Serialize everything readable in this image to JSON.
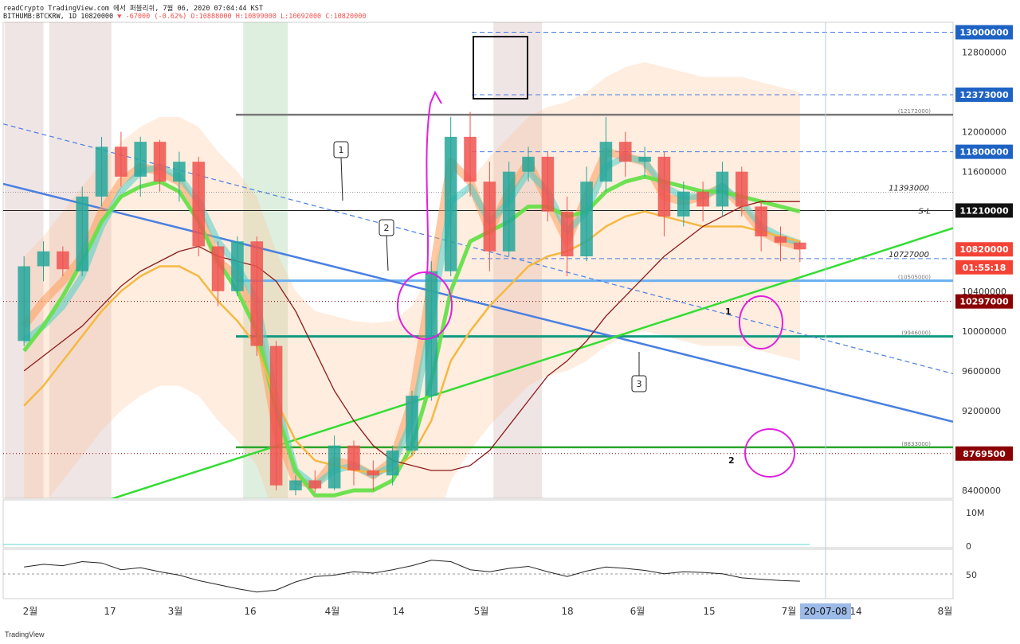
{
  "header": {
    "line1": "readCrypto TradingView.com 에서 퍼블리쉬, 7월 06, 2020 07:04:44 KST",
    "symbol": "BITHUMB:BTCKRW, 1D 10820000",
    "change": "▼ -67000 (-0.62%)",
    "ohlc": "O:10888000 H:10899000 L:10692000 C:10820000"
  },
  "footer": {
    "logo": "TradingView"
  },
  "colors": {
    "up_candle": "#26a69a",
    "down_candle": "#ef5350",
    "price_axis_blue": "#1e63c4",
    "price_axis_red": "#f44336",
    "support_dark_red": "#8b0000",
    "annotation_magenta": "#e020e0",
    "green_line": "#33dd33",
    "blue_line": "#4a7fe0",
    "teal_line": "#119980"
  },
  "chart_data": {
    "type": "line",
    "title": "BITHUMB:BTCKRW, 1D",
    "price_axis": {
      "ticks": [
        "12800000",
        "12400000",
        "12000000",
        "11600000",
        "11200000",
        "10800000",
        "10400000",
        "10000000",
        "9600000",
        "9200000",
        "8800000",
        "8400000"
      ],
      "ylim": [
        8320000,
        13100000
      ]
    },
    "time_axis": {
      "ticks": [
        "2월",
        "17",
        "3월",
        "16",
        "4월",
        "14",
        "5월",
        "18",
        "6월",
        "15",
        "7월",
        "14",
        "8월"
      ],
      "cursor_label": "20-07-08"
    },
    "price_labels": [
      {
        "text": "13000000",
        "value": 13000000,
        "style": "blue"
      },
      {
        "text": "12373000",
        "value": 12373000,
        "style": "blue"
      },
      {
        "text": "11800000",
        "value": 11800000,
        "style": "blue"
      },
      {
        "text": "11210000",
        "value": 11210000,
        "style": "black"
      },
      {
        "text": "10820000",
        "value": 10820000,
        "style": "red"
      },
      {
        "text": "01:55:18",
        "value": 10640000,
        "style": "red"
      },
      {
        "text": "10297000",
        "value": 10297000,
        "style": "darkred"
      },
      {
        "text": "8769500",
        "value": 8769500,
        "style": "darkred"
      }
    ],
    "line_tags": [
      {
        "text": "(12172000)",
        "value": 12172000
      },
      {
        "text": "11393000",
        "value": 11393000
      },
      {
        "text": "S-L",
        "value": 11210000
      },
      {
        "text": "10727000",
        "value": 10727000
      },
      {
        "text": "(10505000)",
        "value": 10505000
      },
      {
        "text": "(9946000)",
        "value": 9946000
      },
      {
        "text": "(8833000)",
        "value": 8833000
      }
    ],
    "horizontal_levels": [
      {
        "value": 13000000,
        "style": "dashed-blue"
      },
      {
        "value": 12373000,
        "style": "dashed-blue"
      },
      {
        "value": 12172000,
        "style": "solid-gray"
      },
      {
        "value": 11800000,
        "style": "dashed-blue"
      },
      {
        "value": 11393000,
        "style": "dotted-gray"
      },
      {
        "value": 11210000,
        "style": "solid-black"
      },
      {
        "value": 10727000,
        "style": "dashed-blue"
      },
      {
        "value": 10505000,
        "style": "solid-lightblue"
      },
      {
        "value": 10297000,
        "style": "dotted-red"
      },
      {
        "value": 9946000,
        "style": "solid-teal"
      },
      {
        "value": 8833000,
        "style": "solid-green"
      },
      {
        "value": 8769500,
        "style": "dotted-red"
      }
    ],
    "candles": [
      {
        "o": 9900000,
        "h": 10750000,
        "l": 9850000,
        "c": 10650000
      },
      {
        "o": 10650000,
        "h": 10900000,
        "l": 10500000,
        "c": 10800000
      },
      {
        "o": 10800000,
        "h": 10850000,
        "l": 10550000,
        "c": 10620000
      },
      {
        "o": 10600000,
        "h": 11450000,
        "l": 10550000,
        "c": 11350000
      },
      {
        "o": 11350000,
        "h": 11950000,
        "l": 11250000,
        "c": 11850000
      },
      {
        "o": 11850000,
        "h": 12000000,
        "l": 11450000,
        "c": 11550000
      },
      {
        "o": 11550000,
        "h": 11950000,
        "l": 11350000,
        "c": 11900000
      },
      {
        "o": 11900000,
        "h": 11920000,
        "l": 11400000,
        "c": 11500000
      },
      {
        "o": 11500000,
        "h": 11800000,
        "l": 11300000,
        "c": 11700000
      },
      {
        "o": 11700000,
        "h": 11750000,
        "l": 10750000,
        "c": 10850000
      },
      {
        "o": 10850000,
        "h": 10900000,
        "l": 10250000,
        "c": 10400000
      },
      {
        "o": 10400000,
        "h": 10950000,
        "l": 10350000,
        "c": 10900000
      },
      {
        "o": 10900000,
        "h": 10950000,
        "l": 9750000,
        "c": 9850000
      },
      {
        "o": 9850000,
        "h": 9900000,
        "l": 8400000,
        "c": 8450000
      },
      {
        "o": 8400000,
        "h": 8550000,
        "l": 8350000,
        "c": 8500000
      },
      {
        "o": 8500000,
        "h": 8600000,
        "l": 8380000,
        "c": 8420000
      },
      {
        "o": 8420000,
        "h": 8950000,
        "l": 8400000,
        "c": 8850000
      },
      {
        "o": 8850000,
        "h": 8900000,
        "l": 8450000,
        "c": 8600000
      },
      {
        "o": 8600000,
        "h": 8700000,
        "l": 8400000,
        "c": 8550000
      },
      {
        "o": 8550000,
        "h": 8850000,
        "l": 8450000,
        "c": 8800000
      },
      {
        "o": 8800000,
        "h": 9400000,
        "l": 8750000,
        "c": 9350000
      },
      {
        "o": 9350000,
        "h": 10700000,
        "l": 9300000,
        "c": 10600000
      },
      {
        "o": 10600000,
        "h": 12150000,
        "l": 10550000,
        "c": 11950000
      },
      {
        "o": 11950000,
        "h": 12200000,
        "l": 11350000,
        "c": 11500000
      },
      {
        "o": 11500000,
        "h": 11700000,
        "l": 10600000,
        "c": 10800000
      },
      {
        "o": 10800000,
        "h": 11700000,
        "l": 10750000,
        "c": 11600000
      },
      {
        "o": 11600000,
        "h": 11850000,
        "l": 11500000,
        "c": 11750000
      },
      {
        "o": 11750000,
        "h": 11800000,
        "l": 11100000,
        "c": 11200000
      },
      {
        "o": 11200000,
        "h": 11350000,
        "l": 10550000,
        "c": 10750000
      },
      {
        "o": 10750000,
        "h": 11650000,
        "l": 10700000,
        "c": 11500000
      },
      {
        "o": 11500000,
        "h": 12150000,
        "l": 11400000,
        "c": 11900000
      },
      {
        "o": 11900000,
        "h": 12000000,
        "l": 11550000,
        "c": 11700000
      },
      {
        "o": 11700000,
        "h": 11850000,
        "l": 11550000,
        "c": 11750000
      },
      {
        "o": 11750000,
        "h": 11800000,
        "l": 10950000,
        "c": 11150000
      },
      {
        "o": 11150000,
        "h": 11500000,
        "l": 11050000,
        "c": 11400000
      },
      {
        "o": 11400000,
        "h": 11500000,
        "l": 11100000,
        "c": 11250000
      },
      {
        "o": 11250000,
        "h": 11700000,
        "l": 11150000,
        "c": 11600000
      },
      {
        "o": 11600000,
        "h": 11650000,
        "l": 11150000,
        "c": 11250000
      },
      {
        "o": 11250000,
        "h": 11300000,
        "l": 10800000,
        "c": 10950000
      },
      {
        "o": 10950000,
        "h": 11050000,
        "l": 10700000,
        "c": 10887000
      },
      {
        "o": 10888000,
        "h": 10899000,
        "l": 10692000,
        "c": 10820000
      }
    ],
    "series": [
      {
        "name": "",
        "color": "#ff9d5c",
        "values": [
          10050000,
          10300000,
          10500000,
          10750000,
          11200000,
          11500000,
          11650000,
          11600000,
          11500000,
          11200000,
          10700000,
          10550000,
          10100000,
          9000000,
          8500000,
          8450000,
          8700000,
          8650000,
          8550000,
          8700000,
          9300000,
          10500000,
          11700000,
          11500000,
          11000000,
          11400000,
          11700000,
          11300000,
          10900000,
          11350000,
          11800000,
          11750000,
          11700000,
          11350000,
          11300000,
          11350000,
          11450000,
          11250000,
          11000000,
          10900000,
          10850000
        ]
      },
      {
        "name": "",
        "color": "#4dd0c8",
        "values": [
          9900000,
          10050000,
          10250000,
          10550000,
          11050000,
          11400000,
          11600000,
          11650000,
          11550000,
          11300000,
          10900000,
          10650000,
          10300000,
          9300000,
          8600000,
          8450000,
          8600000,
          8650000,
          8550000,
          8650000,
          9100000,
          10100000,
          11300000,
          11450000,
          11100000,
          11300000,
          11600000,
          11400000,
          11000000,
          11200000,
          11650000,
          11750000,
          11700000,
          11450000,
          11350000,
          11350000,
          11450000,
          11300000,
          11050000,
          10950000,
          10880000
        ]
      },
      {
        "name": "",
        "color": "#66e04a",
        "values": [
          9800000,
          10050000,
          10350000,
          10700000,
          11100000,
          11350000,
          11450000,
          11500000,
          11400000,
          11100000,
          10700000,
          10400000,
          10000000,
          9200000,
          8600000,
          8350000,
          8350000,
          8400000,
          8400000,
          8500000,
          8850000,
          9500000,
          10400000,
          10900000,
          11000000,
          11100000,
          11250000,
          11250000,
          11150000,
          11200000,
          11400000,
          11500000,
          11550000,
          11500000,
          11450000,
          11400000,
          11400000,
          11350000,
          11300000,
          11250000,
          11200000
        ]
      },
      {
        "name": "",
        "color": "#f5b942",
        "values": [
          9250000,
          9450000,
          9700000,
          9950000,
          10200000,
          10400000,
          10550000,
          10650000,
          10650000,
          10550000,
          10300000,
          10100000,
          9850000,
          9300000,
          8900000,
          8700000,
          8650000,
          8600000,
          8580000,
          8600000,
          8750000,
          9100000,
          9700000,
          10000000,
          10250000,
          10450000,
          10650000,
          10750000,
          10800000,
          10900000,
          11050000,
          11150000,
          11200000,
          11150000,
          11100000,
          11050000,
          11050000,
          11050000,
          11000000,
          10950000,
          10900000
        ]
      },
      {
        "name": "",
        "color": "#8b1a1a",
        "values": [
          9600000,
          9750000,
          9900000,
          10050000,
          10250000,
          10450000,
          10600000,
          10700000,
          10800000,
          10850000,
          10750000,
          10700000,
          10650000,
          10500000,
          10200000,
          9800000,
          9400000,
          9100000,
          8850000,
          8700000,
          8650000,
          8600000,
          8600000,
          8650000,
          8800000,
          9050000,
          9300000,
          9550000,
          9700000,
          9900000,
          10150000,
          10350000,
          10550000,
          10750000,
          10900000,
          11050000,
          11150000,
          11250000,
          11300000,
          11300000,
          11300000
        ]
      }
    ],
    "trendlines": [
      {
        "color": "#4a7fe0",
        "style": "solid",
        "from": {
          "bar": -0.5,
          "y": 11450000
        },
        "to": {
          "bar": 40.5,
          "y": 9450000
        }
      },
      {
        "color": "#4a7fe0",
        "style": "dashed",
        "from": {
          "bar": -0.5,
          "y": 12050000
        },
        "to": {
          "bar": 40.5,
          "y": 9950000
        }
      },
      {
        "color": "#33dd33",
        "style": "solid",
        "from": {
          "bar": -0.5,
          "y": 8000000
        },
        "to": {
          "bar": 40.5,
          "y": 10570000
        }
      }
    ],
    "annotations": [
      "1",
      "2",
      "3",
      "1",
      "2"
    ],
    "volume_ticks": [
      "10M",
      "0"
    ],
    "rsi_ticks": [
      "50"
    ]
  }
}
